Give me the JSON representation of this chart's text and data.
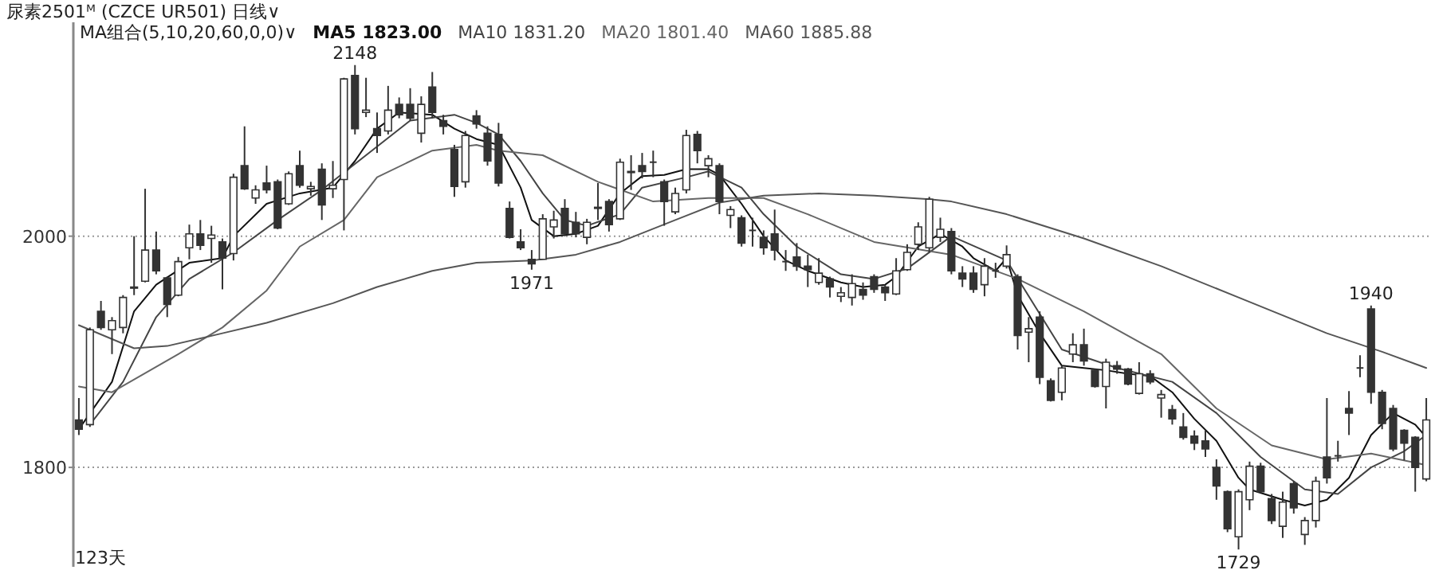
{
  "chart_data": {
    "type": "candlestick",
    "title": "尿素2501ᴹ (CZCE UR501)   日线∨",
    "legend_title": "MA组合(5,10,20,60,0,0)∨",
    "legend": "top left",
    "grid": "y",
    "ylim": [
      1714,
      2185
    ],
    "yticks": [
      2000,
      1800
    ],
    "categories": [
      null,
      null,
      null,
      null,
      null,
      null,
      null,
      null,
      null,
      null,
      null,
      null,
      null,
      null,
      null,
      null,
      null,
      null,
      null,
      null,
      null,
      null,
      null,
      null,
      null,
      null,
      null,
      null,
      null,
      null,
      null,
      null,
      null,
      null,
      null,
      null,
      null,
      null,
      null,
      null,
      null,
      null,
      null,
      null,
      null,
      null,
      null,
      null,
      null,
      null,
      null,
      null,
      null,
      null,
      null,
      null,
      null,
      null,
      null,
      null,
      null,
      null,
      null,
      null,
      null,
      null,
      null,
      null,
      null,
      null,
      null,
      null,
      null,
      null,
      null,
      null,
      null,
      null,
      null,
      null,
      null,
      null,
      null,
      null,
      null,
      null,
      null,
      null,
      null,
      null,
      null,
      null,
      null,
      null,
      null,
      null,
      null,
      null,
      null,
      null,
      null,
      null,
      null,
      null,
      null,
      null,
      null,
      null,
      null,
      null,
      null,
      null,
      null,
      null,
      null,
      null,
      null,
      null,
      null,
      null,
      null,
      null,
      null
    ],
    "ohlc": [
      [
        1841,
        1860,
        1828,
        1833
      ],
      [
        1837,
        1921,
        1835,
        1919
      ],
      [
        1935,
        1944,
        1919,
        1921
      ],
      [
        1919,
        1930,
        1898,
        1927
      ],
      [
        1921,
        1949,
        1916,
        1947
      ],
      [
        1955,
        2000,
        1949,
        1956
      ],
      [
        1961,
        2041,
        1960,
        1988
      ],
      [
        1988,
        2004,
        1967,
        1970
      ],
      [
        1964,
        1965,
        1930,
        1941
      ],
      [
        1949,
        1982,
        1948,
        1978
      ],
      [
        1990,
        2010,
        1980,
        2002
      ],
      [
        2002,
        2014,
        1988,
        1992
      ],
      [
        1998,
        2009,
        1977,
        2001
      ],
      [
        1995,
        1998,
        1954,
        1981
      ],
      [
        1985,
        2054,
        1979,
        2051
      ],
      [
        2061,
        2095,
        2040,
        2041
      ],
      [
        2033,
        2044,
        2028,
        2040
      ],
      [
        2046,
        2061,
        2037,
        2040
      ],
      [
        2047,
        2049,
        2006,
        2007
      ],
      [
        2028,
        2056,
        2027,
        2054
      ],
      [
        2061,
        2074,
        2042,
        2044
      ],
      [
        2041,
        2047,
        2035,
        2043
      ],
      [
        2058,
        2063,
        2014,
        2027
      ],
      [
        2041,
        2065,
        2033,
        2044
      ],
      [
        2049,
        2137,
        2005,
        2136
      ],
      [
        2139,
        2148,
        2088,
        2093
      ],
      [
        2107,
        2137,
        2103,
        2109
      ],
      [
        2093,
        2107,
        2072,
        2087
      ],
      [
        2091,
        2130,
        2088,
        2109
      ],
      [
        2114,
        2120,
        2102,
        2105
      ],
      [
        2114,
        2128,
        2100,
        2102
      ],
      [
        2089,
        2121,
        2081,
        2114
      ],
      [
        2129,
        2142,
        2102,
        2107
      ],
      [
        2100,
        2105,
        2088,
        2095
      ],
      [
        2075,
        2079,
        2034,
        2043
      ],
      [
        2047,
        2091,
        2042,
        2087
      ],
      [
        2104,
        2109,
        2093,
        2097
      ],
      [
        2089,
        2095,
        2061,
        2065
      ],
      [
        2088,
        2098,
        2043,
        2046
      ],
      [
        2024,
        2030,
        1998,
        1999
      ],
      [
        1995,
        2006,
        1988,
        1990
      ],
      [
        1980,
        1988,
        1971,
        1976
      ],
      [
        1980,
        2019,
        1980,
        2015
      ],
      [
        2008,
        2022,
        1998,
        2014
      ],
      [
        2024,
        2032,
        2000,
        2002
      ],
      [
        2012,
        2021,
        1999,
        2002
      ],
      [
        1999,
        2015,
        1993,
        2012
      ],
      [
        2024,
        2046,
        2014,
        2025
      ],
      [
        2030,
        2032,
        2004,
        2010
      ],
      [
        2015,
        2067,
        2014,
        2064
      ],
      [
        2056,
        2070,
        2040,
        2055
      ],
      [
        2061,
        2072,
        2050,
        2056
      ],
      [
        2064,
        2074,
        2051,
        2064
      ],
      [
        2047,
        2049,
        2009,
        2030
      ],
      [
        2021,
        2042,
        2019,
        2037
      ],
      [
        2040,
        2092,
        2037,
        2087
      ],
      [
        2088,
        2091,
        2063,
        2074
      ],
      [
        2061,
        2070,
        2051,
        2067
      ],
      [
        2061,
        2063,
        2019,
        2030
      ],
      [
        2018,
        2026,
        2007,
        2023
      ],
      [
        2016,
        2018,
        1991,
        1994
      ],
      [
        2005,
        2016,
        1991,
        2005
      ],
      [
        1999,
        2005,
        1984,
        1990
      ],
      [
        2002,
        2023,
        1979,
        1988
      ],
      [
        1978,
        1988,
        1970,
        1978
      ],
      [
        1982,
        1994,
        1970,
        1974
      ],
      [
        1974,
        1984,
        1956,
        1971
      ],
      [
        1960,
        1981,
        1958,
        1968
      ],
      [
        1963,
        1965,
        1947,
        1956
      ],
      [
        1948,
        1956,
        1943,
        1951
      ],
      [
        1947,
        1967,
        1940,
        1959
      ],
      [
        1954,
        1960,
        1945,
        1949
      ],
      [
        1965,
        1967,
        1951,
        1954
      ],
      [
        1956,
        1958,
        1944,
        1951
      ],
      [
        1950,
        1981,
        1949,
        1970
      ],
      [
        1971,
        1993,
        1970,
        1986
      ],
      [
        1993,
        2012,
        1988,
        2008
      ],
      [
        1990,
        2034,
        1986,
        2032
      ],
      [
        1999,
        2016,
        1995,
        2006
      ],
      [
        2004,
        2007,
        1967,
        1970
      ],
      [
        1968,
        1974,
        1956,
        1963
      ],
      [
        1968,
        1974,
        1951,
        1954
      ],
      [
        1958,
        1981,
        1948,
        1974
      ],
      [
        1970,
        1977,
        1964,
        1970
      ],
      [
        1974,
        1992,
        1972,
        1984
      ],
      [
        1965,
        1967,
        1902,
        1914
      ],
      [
        1917,
        1930,
        1891,
        1920
      ],
      [
        1930,
        1935,
        1872,
        1878
      ],
      [
        1875,
        1877,
        1857,
        1858
      ],
      [
        1865,
        1888,
        1858,
        1886
      ],
      [
        1898,
        1916,
        1891,
        1906
      ],
      [
        1906,
        1920,
        1888,
        1892
      ],
      [
        1884,
        1885,
        1869,
        1870
      ],
      [
        1870,
        1894,
        1851,
        1891
      ],
      [
        1888,
        1892,
        1881,
        1885
      ],
      [
        1885,
        1886,
        1871,
        1872
      ],
      [
        1864,
        1891,
        1863,
        1881
      ],
      [
        1881,
        1884,
        1872,
        1874
      ],
      [
        1860,
        1867,
        1843,
        1863
      ],
      [
        1850,
        1854,
        1837,
        1842
      ],
      [
        1835,
        1847,
        1824,
        1826
      ],
      [
        1827,
        1832,
        1815,
        1821
      ],
      [
        1823,
        1832,
        1809,
        1816
      ],
      [
        1800,
        1807,
        1772,
        1784
      ],
      [
        1779,
        1780,
        1744,
        1747
      ],
      [
        1740,
        1781,
        1729,
        1779
      ],
      [
        1772,
        1805,
        1763,
        1801
      ],
      [
        1801,
        1804,
        1778,
        1779
      ],
      [
        1773,
        1777,
        1751,
        1754
      ],
      [
        1749,
        1779,
        1739,
        1770
      ],
      [
        1786,
        1788,
        1760,
        1765
      ],
      [
        1742,
        1757,
        1733,
        1754
      ],
      [
        1754,
        1792,
        1748,
        1788
      ],
      [
        1809,
        1860,
        1786,
        1791
      ],
      [
        1810,
        1823,
        1805,
        1810
      ],
      [
        1851,
        1866,
        1828,
        1847
      ],
      [
        1886,
        1897,
        1878,
        1886
      ],
      [
        1937,
        1940,
        1855,
        1865
      ],
      [
        1865,
        1867,
        1833,
        1838
      ],
      [
        1851,
        1854,
        1814,
        1816
      ],
      [
        1832,
        1833,
        1806,
        1821
      ],
      [
        1826,
        1827,
        1779,
        1800
      ],
      [
        1790,
        1860,
        1788,
        1841
      ]
    ],
    "series": [
      {
        "name": "MA5 1823.00",
        "type": "line",
        "color": "#111111",
        "values": [
          1833,
          null,
          null,
          1874,
          null,
          1935,
          null,
          1958,
          null,
          null,
          1977,
          null,
          null,
          1981,
          2000,
          null,
          null,
          2028,
          null,
          null,
          2037,
          null,
          null,
          2042,
          null,
          2065,
          null,
          2093,
          null,
          2107,
          null,
          null,
          2105,
          null,
          2093,
          null,
          2084,
          null,
          2079,
          null,
          2042,
          2014,
          null,
          2000,
          null,
          2002,
          null,
          2009,
          null,
          2037,
          null,
          2052,
          null,
          2053,
          null,
          2058,
          null,
          2058,
          2053,
          null,
          2028,
          null,
          2000,
          null,
          1979,
          null,
          1970,
          null,
          null,
          1960,
          null,
          1956,
          null,
          1958,
          1965,
          null,
          1991,
          null,
          2002,
          null,
          1991,
          1981,
          null,
          1970,
          1981,
          1949,
          null,
          1916,
          null,
          1888,
          null,
          1886,
          null,
          1884,
          null,
          1881,
          null,
          1879,
          null,
          1865,
          null,
          1842,
          null,
          1823,
          null,
          1791,
          1781,
          null,
          null,
          1772,
          null,
          1767,
          null,
          1772,
          null,
          1791,
          null,
          1828,
          null,
          1847,
          null,
          1837,
          1826
        ]
      },
      {
        "name": "MA10 1831.20",
        "type": "line",
        "color": "#444444",
        "values": [
          null,
          1837,
          null,
          null,
          1874,
          null,
          null,
          1930,
          null,
          null,
          1963,
          null,
          null,
          null,
          1986,
          null,
          null,
          null,
          2014,
          null,
          null,
          null,
          2040,
          null,
          null,
          null,
          2070,
          null,
          null,
          null,
          2100,
          null,
          null,
          null,
          2105,
          null,
          2098,
          null,
          2088,
          null,
          2065,
          null,
          2037,
          null,
          2014,
          null,
          2009,
          null,
          null,
          2019,
          null,
          2042,
          null,
          null,
          null,
          2051,
          null,
          2056,
          null,
          null,
          2042,
          null,
          2019,
          null,
          null,
          1991,
          null,
          null,
          null,
          1967,
          null,
          null,
          1963,
          null,
          null,
          1972,
          null,
          null,
          null,
          2000,
          null,
          null,
          null,
          null,
          1979,
          null,
          null,
          null,
          null,
          1902,
          null,
          null,
          null,
          null,
          1886,
          null,
          null,
          null,
          null,
          1874,
          null,
          null,
          null,
          1847,
          null,
          null,
          null,
          1809,
          null,
          null,
          null,
          1781,
          null,
          null,
          1777,
          null,
          null,
          1800,
          null,
          null,
          1814,
          null,
          1828
        ]
      },
      {
        "name": "MA20 1801.40",
        "type": "line",
        "color": "#666666",
        "values": [
          1870,
          null,
          null,
          1865,
          null,
          null,
          null,
          null,
          null,
          1898,
          null,
          null,
          null,
          1921,
          null,
          null,
          null,
          1953,
          null,
          null,
          1991,
          null,
          null,
          null,
          2014,
          null,
          null,
          2051,
          null,
          null,
          null,
          null,
          2074,
          null,
          null,
          null,
          2079,
          null,
          2074,
          null,
          null,
          null,
          2070,
          null,
          null,
          null,
          null,
          2047,
          null,
          null,
          null,
          null,
          2030,
          null,
          null,
          null,
          null,
          2033,
          null,
          null,
          null,
          null,
          2033,
          null,
          null,
          null,
          2019,
          null,
          null,
          null,
          null,
          null,
          1995,
          null,
          null,
          null,
          null,
          null,
          null,
          1984,
          null,
          null,
          null,
          null,
          null,
          1963,
          null,
          null,
          null,
          null,
          null,
          1935,
          null,
          null,
          null,
          null,
          null,
          null,
          1898,
          null,
          null,
          null,
          null,
          1851,
          null,
          null,
          null,
          null,
          1819,
          null,
          null,
          null,
          null,
          1807,
          null,
          null,
          null,
          1812,
          null,
          null,
          null,
          null,
          1802
        ]
      },
      {
        "name": "MA60 1885.88",
        "type": "line",
        "color": "#555555",
        "values": [
          1923,
          null,
          null,
          null,
          null,
          1903,
          null,
          null,
          1905,
          null,
          null,
          null,
          null,
          1916,
          null,
          null,
          null,
          1925,
          null,
          null,
          null,
          null,
          null,
          1942,
          null,
          null,
          null,
          1956,
          null,
          null,
          null,
          null,
          1970,
          null,
          null,
          null,
          1977,
          null,
          null,
          null,
          null,
          1979,
          null,
          null,
          null,
          1984,
          null,
          null,
          null,
          1995,
          null,
          null,
          null,
          null,
          2014,
          null,
          null,
          null,
          2029,
          null,
          null,
          null,
          2035,
          null,
          null,
          null,
          null,
          2037,
          null,
          null,
          null,
          null,
          2035,
          null,
          null,
          null,
          null,
          2032,
          null,
          2030,
          null,
          null,
          null,
          null,
          2019,
          null,
          null,
          null,
          null,
          null,
          null,
          1998,
          null,
          null,
          null,
          null,
          null,
          null,
          1974,
          null,
          null,
          null,
          null,
          null,
          null,
          1947,
          null,
          null,
          null,
          null,
          null,
          null,
          null,
          1916,
          null,
          null,
          null,
          null,
          1900,
          null,
          null,
          null,
          1886
        ]
      }
    ],
    "annotations": [
      "2148",
      "1971",
      "1729",
      "1940",
      "123天"
    ]
  }
}
